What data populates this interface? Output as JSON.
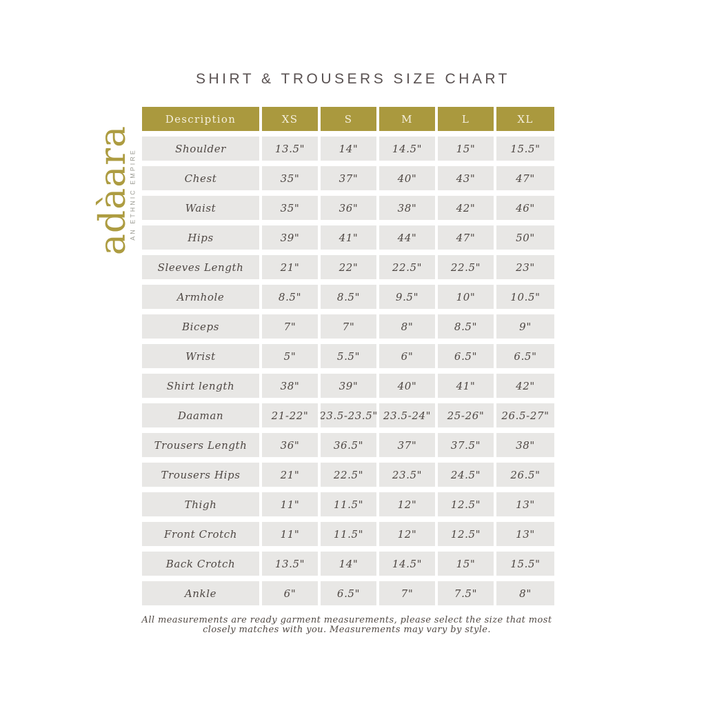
{
  "page": {
    "title": "SHIRT & TROUSERS SIZE CHART"
  },
  "logo": {
    "brand": "adàara",
    "tagline": "AN ETHNIC EMPIRE"
  },
  "table": {
    "headers": [
      "Description",
      "XS",
      "S",
      "M",
      "L",
      "XL"
    ],
    "rows": [
      {
        "label": "Shoulder",
        "values": [
          "13.5\"",
          "14\"",
          "14.5\"",
          "15\"",
          "15.5\""
        ]
      },
      {
        "label": "Chest",
        "values": [
          "35\"",
          "37\"",
          "40\"",
          "43\"",
          "47\""
        ]
      },
      {
        "label": "Waist",
        "values": [
          "35\"",
          "36\"",
          "38\"",
          "42\"",
          "46\""
        ]
      },
      {
        "label": "Hips",
        "values": [
          "39\"",
          "41\"",
          "44\"",
          "47\"",
          "50\""
        ]
      },
      {
        "label": "Sleeves Length",
        "values": [
          "21\"",
          "22\"",
          "22.5\"",
          "22.5\"",
          "23\""
        ]
      },
      {
        "label": "Armhole",
        "values": [
          "8.5\"",
          "8.5\"",
          "9.5\"",
          "10\"",
          "10.5\""
        ]
      },
      {
        "label": "Biceps",
        "values": [
          "7\"",
          "7\"",
          "8\"",
          "8.5\"",
          "9\""
        ]
      },
      {
        "label": "Wrist",
        "values": [
          "5\"",
          "5.5\"",
          "6\"",
          "6.5\"",
          "6.5\""
        ]
      },
      {
        "label": "Shirt length",
        "values": [
          "38\"",
          "39\"",
          "40\"",
          "41\"",
          "42\""
        ]
      },
      {
        "label": "Daaman",
        "values": [
          "21-22\"",
          "23.5-23.5\"",
          "23.5-24\"",
          "25-26\"",
          "26.5-27\""
        ]
      },
      {
        "label": "Trousers Length",
        "values": [
          "36\"",
          "36.5\"",
          "37\"",
          "37.5\"",
          "38\""
        ]
      },
      {
        "label": "Trousers Hips",
        "values": [
          "21\"",
          "22.5\"",
          "23.5\"",
          "24.5\"",
          "26.5\""
        ]
      },
      {
        "label": "Thigh",
        "values": [
          "11\"",
          "11.5\"",
          "12\"",
          "12.5\"",
          "13\""
        ]
      },
      {
        "label": "Front Crotch",
        "values": [
          "11\"",
          "11.5\"",
          "12\"",
          "12.5\"",
          "13\""
        ]
      },
      {
        "label": "Back Crotch",
        "values": [
          "13.5\"",
          "14\"",
          "14.5\"",
          "15\"",
          "15.5\""
        ]
      },
      {
        "label": "Ankle",
        "values": [
          "6\"",
          "6.5\"",
          "7\"",
          "7.5\"",
          "8\""
        ]
      }
    ]
  },
  "footer": {
    "note_line1": "All measurements are ready garment measurements, please select the size that most",
    "note_line2": "closely matches with you. Measurements may vary by style."
  },
  "colors": {
    "header_bg": "#aa993e",
    "header_text": "#f5efdd",
    "cell_bg": "#e8e7e5",
    "cell_text": "#4e4743",
    "title_text": "#5a5252",
    "brand_gold": "#ad9c41",
    "tagline_gray": "#9c9c94"
  }
}
